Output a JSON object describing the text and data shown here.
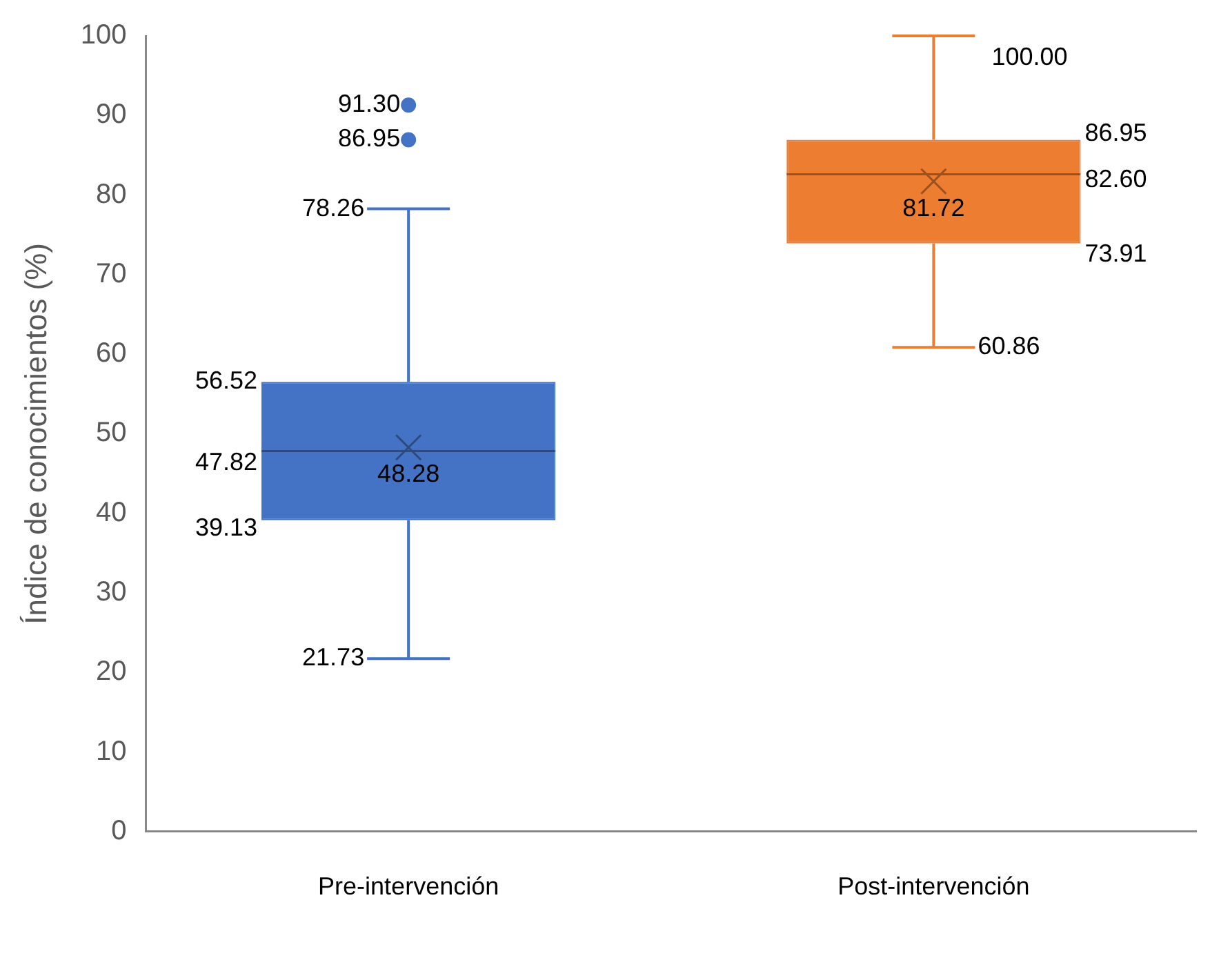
{
  "chart_data": {
    "type": "box",
    "ylabel": "Índice de conocimientos (%)",
    "categories": [
      "Pre-intervención",
      "Post-intervención"
    ],
    "boxes": [
      {
        "low": 21.73,
        "q1": 39.13,
        "median": 47.82,
        "q3": 56.52,
        "high": 78.26,
        "mean": 48.28,
        "outliers": [
          86.95,
          91.3
        ]
      },
      {
        "low": 60.86,
        "q1": 73.91,
        "median": 82.6,
        "q3": 86.95,
        "high": 100,
        "mean": 81.72
      }
    ],
    "colors": [
      "#4472c4",
      "#ed7d31"
    ],
    "ylim": [
      0,
      100
    ],
    "yticks": [
      0,
      10,
      20,
      30,
      40,
      50,
      60,
      70,
      80,
      90,
      100
    ],
    "grid": false,
    "legend": false,
    "annotations": [
      "91.30",
      "86.95",
      "56.52",
      "47.82",
      "39.13",
      "86.95",
      "82.60",
      "73.91",
      {
        "text": "78.26",
        "x": "Pre-intervención",
        "y": 78.26
      },
      {
        "text": "48.28",
        "x": "Pre-intervención",
        "y": 48.28
      },
      {
        "text": "21.73",
        "x": "Pre-intervención",
        "y": 21.73
      },
      {
        "text": "100.00",
        "x": "Post-intervención",
        "y": 100
      },
      {
        "text": "81.72",
        "x": "Post-intervención",
        "y": 81.72
      },
      {
        "text": "60.86",
        "x": "Post-intervención",
        "y": 60.86
      }
    ]
  }
}
